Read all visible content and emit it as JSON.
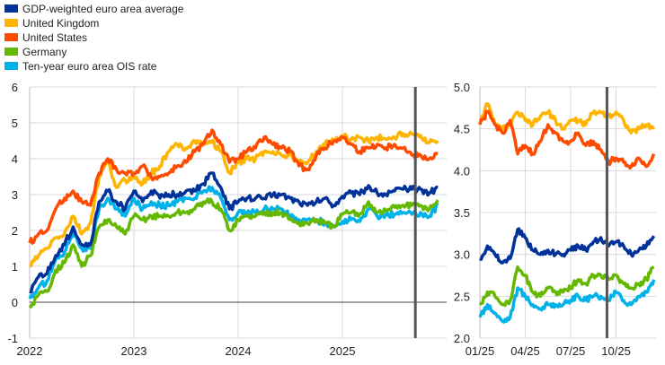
{
  "chart_data": [
    {
      "type": "line",
      "panel": "left",
      "x_start": "2022-01",
      "x_step": "month",
      "xlim": [
        2022.0,
        2026.0
      ],
      "ylim": [
        -1,
        6
      ],
      "yticks": [
        "6",
        "5",
        "4",
        "3",
        "2",
        "1",
        "0",
        "-1"
      ],
      "xticks": [
        {
          "label": "2022",
          "x": 2022
        },
        {
          "label": "2023",
          "x": 2023
        },
        {
          "label": "2024",
          "x": 2024
        },
        {
          "label": "2025",
          "x": 2025
        }
      ],
      "marker_x": 2025.7,
      "grid": true,
      "series": [
        {
          "name": "United Kingdom",
          "color": "#ffb400",
          "values": [
            1.0,
            1.3,
            1.5,
            1.8,
            1.9,
            2.4,
            1.9,
            2.2,
            3.5,
            3.9,
            3.2,
            3.4,
            3.5,
            3.3,
            3.6,
            3.8,
            4.2,
            4.4,
            4.3,
            4.5,
            4.4,
            4.5,
            4.2,
            3.6,
            3.9,
            4.0,
            4.0,
            4.2,
            4.2,
            4.1,
            4.1,
            3.9,
            3.9,
            4.2,
            4.4,
            4.5,
            4.65,
            4.55,
            4.6,
            4.5,
            4.6,
            4.55,
            4.6,
            4.7,
            4.7,
            4.65,
            4.45,
            4.5
          ]
        },
        {
          "name": "United States",
          "color": "#ff4b00",
          "values": [
            1.65,
            1.9,
            2.0,
            2.6,
            2.9,
            3.1,
            2.8,
            2.7,
            3.6,
            4.0,
            3.7,
            3.6,
            3.6,
            3.8,
            3.5,
            3.5,
            3.6,
            3.8,
            3.9,
            4.2,
            4.4,
            4.8,
            4.4,
            3.9,
            4.0,
            4.2,
            4.3,
            4.6,
            4.4,
            4.3,
            4.2,
            3.8,
            3.7,
            4.1,
            4.3,
            4.5,
            4.6,
            4.4,
            4.2,
            4.3,
            4.4,
            4.3,
            4.4,
            4.3,
            4.1,
            4.1,
            4.0,
            4.15
          ]
        },
        {
          "name": "Ten-year euro area OIS rate",
          "color": "#00b1ea",
          "values": [
            0.1,
            0.4,
            0.6,
            1.2,
            1.4,
            2.0,
            1.5,
            1.5,
            2.6,
            2.9,
            2.6,
            2.4,
            2.9,
            2.6,
            2.8,
            2.7,
            2.7,
            2.8,
            2.9,
            2.9,
            3.1,
            3.2,
            2.9,
            2.3,
            2.5,
            2.5,
            2.5,
            2.6,
            2.6,
            2.6,
            2.4,
            2.3,
            2.3,
            2.3,
            2.2,
            2.1,
            2.25,
            2.3,
            2.25,
            2.6,
            2.4,
            2.45,
            2.45,
            2.5,
            2.45,
            2.5,
            2.4,
            2.7
          ]
        },
        {
          "name": "Germany",
          "color": "#65b800",
          "values": [
            -0.15,
            0.2,
            0.3,
            0.9,
            1.1,
            1.6,
            1.0,
            1.3,
            2.1,
            2.3,
            2.1,
            1.9,
            2.4,
            2.3,
            2.4,
            2.4,
            2.4,
            2.5,
            2.5,
            2.6,
            2.8,
            2.8,
            2.6,
            2.0,
            2.3,
            2.4,
            2.4,
            2.5,
            2.5,
            2.5,
            2.3,
            2.2,
            2.2,
            2.3,
            2.2,
            2.1,
            2.45,
            2.5,
            2.45,
            2.8,
            2.5,
            2.55,
            2.65,
            2.7,
            2.7,
            2.7,
            2.6,
            2.85
          ]
        },
        {
          "name": "GDP-weighted euro area average",
          "color": "#003299",
          "values": [
            0.3,
            0.7,
            0.8,
            1.3,
            1.6,
            2.1,
            1.6,
            1.6,
            2.8,
            3.1,
            2.8,
            2.6,
            3.1,
            2.8,
            3.1,
            2.9,
            3.0,
            3.0,
            3.1,
            3.1,
            3.3,
            3.6,
            3.2,
            2.6,
            2.8,
            2.9,
            2.9,
            2.9,
            3.0,
            3.0,
            2.9,
            2.8,
            2.7,
            2.8,
            2.9,
            2.7,
            2.95,
            3.05,
            3.0,
            3.25,
            3.05,
            3.0,
            3.1,
            3.15,
            3.15,
            3.15,
            3.05,
            3.2
          ]
        }
      ]
    },
    {
      "type": "line",
      "panel": "right",
      "x_start": "2025-01",
      "x_step": "half-month",
      "xlim": [
        2025.0,
        2025.97
      ],
      "ylim": [
        2.0,
        5.0
      ],
      "yticks": [
        "5.0",
        "4.5",
        "4.0",
        "3.5",
        "3.0",
        "2.5",
        "2.0"
      ],
      "xticks": [
        {
          "label": "01/25",
          "x": 2025.0
        },
        {
          "label": "04/25",
          "x": 2025.25
        },
        {
          "label": "07/25",
          "x": 2025.5
        },
        {
          "label": "10/25",
          "x": 2025.75
        }
      ],
      "marker_x": 2025.7,
      "grid": true,
      "series": [
        {
          "name": "United Kingdom",
          "color": "#ffb400",
          "values": [
            4.6,
            4.8,
            4.55,
            4.5,
            4.55,
            4.7,
            4.6,
            4.55,
            4.65,
            4.7,
            4.6,
            4.5,
            4.6,
            4.6,
            4.55,
            4.7,
            4.7,
            4.65,
            4.7,
            4.6,
            4.45,
            4.5,
            4.55,
            4.5
          ]
        },
        {
          "name": "United States",
          "color": "#ff4b00",
          "values": [
            4.55,
            4.7,
            4.55,
            4.45,
            4.6,
            4.2,
            4.3,
            4.2,
            4.35,
            4.55,
            4.45,
            4.35,
            4.35,
            4.45,
            4.3,
            4.35,
            4.25,
            4.1,
            4.15,
            4.1,
            4.05,
            4.15,
            4.05,
            4.2
          ]
        },
        {
          "name": "Ten-year euro area OIS rate",
          "color": "#00b1ea",
          "values": [
            2.25,
            2.4,
            2.3,
            2.2,
            2.25,
            2.6,
            2.5,
            2.4,
            2.35,
            2.4,
            2.4,
            2.4,
            2.45,
            2.5,
            2.45,
            2.5,
            2.5,
            2.45,
            2.55,
            2.45,
            2.4,
            2.5,
            2.55,
            2.7
          ]
        },
        {
          "name": "Germany",
          "color": "#65b800",
          "values": [
            2.4,
            2.55,
            2.5,
            2.4,
            2.45,
            2.85,
            2.75,
            2.55,
            2.5,
            2.6,
            2.55,
            2.55,
            2.6,
            2.7,
            2.65,
            2.75,
            2.75,
            2.7,
            2.75,
            2.65,
            2.6,
            2.65,
            2.7,
            2.85
          ]
        },
        {
          "name": "GDP-weighted euro area average",
          "color": "#003299",
          "values": [
            2.95,
            3.1,
            3.0,
            2.9,
            2.95,
            3.3,
            3.2,
            3.05,
            3.0,
            3.05,
            3.0,
            3.0,
            3.05,
            3.1,
            3.05,
            3.15,
            3.2,
            3.1,
            3.15,
            3.1,
            3.0,
            3.05,
            3.1,
            3.22
          ]
        }
      ]
    }
  ],
  "legend": {
    "placement": "top-left",
    "items": [
      {
        "label": "GDP-weighted euro area average",
        "color": "#003299"
      },
      {
        "label": "United Kingdom",
        "color": "#ffb400"
      },
      {
        "label": "United States",
        "color": "#ff4b00"
      },
      {
        "label": "Germany",
        "color": "#65b800"
      },
      {
        "label": "Ten-year euro area OIS rate",
        "color": "#00b1ea"
      }
    ]
  }
}
